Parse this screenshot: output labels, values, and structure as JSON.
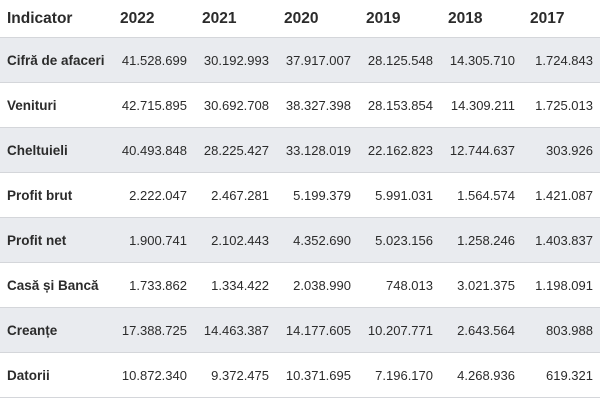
{
  "table": {
    "header": [
      "Indicator",
      "2022",
      "2021",
      "2020",
      "2019",
      "2018",
      "2017"
    ],
    "rows": [
      [
        "Cifră de afaceri",
        "41.528.699",
        "30.192.993",
        "37.917.007",
        "28.125.548",
        "14.305.710",
        "1.724.843"
      ],
      [
        "Venituri",
        "42.715.895",
        "30.692.708",
        "38.327.398",
        "28.153.854",
        "14.309.211",
        "1.725.013"
      ],
      [
        "Cheltuieli",
        "40.493.848",
        "28.225.427",
        "33.128.019",
        "22.162.823",
        "12.744.637",
        "303.926"
      ],
      [
        "Profit brut",
        "2.222.047",
        "2.467.281",
        "5.199.379",
        "5.991.031",
        "1.564.574",
        "1.421.087"
      ],
      [
        "Profit net",
        "1.900.741",
        "2.102.443",
        "4.352.690",
        "5.023.156",
        "1.258.246",
        "1.403.837"
      ],
      [
        "Casă și Bancă",
        "1.733.862",
        "1.334.422",
        "2.038.990",
        "748.013",
        "3.021.375",
        "1.198.091"
      ],
      [
        "Creanțe",
        "17.388.725",
        "14.463.387",
        "14.177.605",
        "10.207.771",
        "2.643.564",
        "803.988"
      ],
      [
        "Datorii",
        "10.872.340",
        "9.372.475",
        "10.371.695",
        "7.196.170",
        "4.268.936",
        "619.321"
      ]
    ]
  }
}
